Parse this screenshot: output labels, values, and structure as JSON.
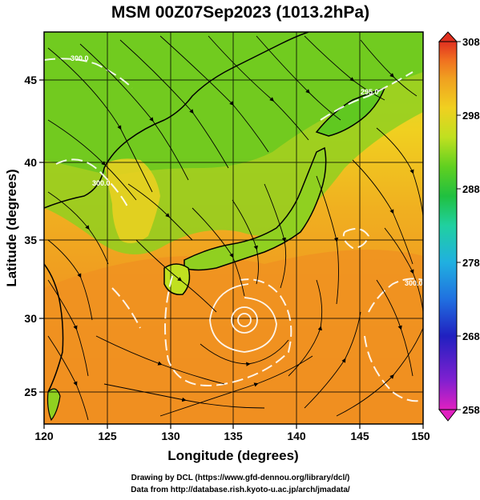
{
  "title": "MSM 00Z07Sep2023 (1013.2hPa)",
  "x_axis": {
    "label": "Longitude (degrees)",
    "ticks": [
      "120",
      "125",
      "130",
      "135",
      "140",
      "145",
      "150"
    ]
  },
  "y_axis": {
    "label": "Latitude  (degrees)",
    "ticks": [
      "25",
      "30",
      "35",
      "40",
      "45"
    ]
  },
  "colorbar": {
    "ticks": [
      "258",
      "268",
      "278",
      "288",
      "298",
      "308"
    ],
    "colors": [
      "#e020c0",
      "#8020d0",
      "#2020c0",
      "#2070e0",
      "#20b0e0",
      "#20d0a0",
      "#20c040",
      "#60d020",
      "#c0e020",
      "#f0d020",
      "#f0a020",
      "#f07020",
      "#e03020"
    ]
  },
  "contour_labels": [
    "300.0",
    "300.0",
    "300.0",
    "295.0"
  ],
  "credits": {
    "line1": "Drawing by DCL (https://www.gfd-dennou.org/library/dcl/)",
    "line2": "Data from http://database.rish.kyoto-u.ac.jp/arch/jmadata/"
  },
  "map_data": {
    "projection": "equirectangular",
    "lon_range": [
      120,
      150
    ],
    "lat_range": [
      22.4,
      47.6
    ],
    "field": "temperature (K) with streamlines",
    "color_range": [
      258,
      308
    ],
    "typhoon_center": [
      135.6,
      29.8
    ]
  }
}
